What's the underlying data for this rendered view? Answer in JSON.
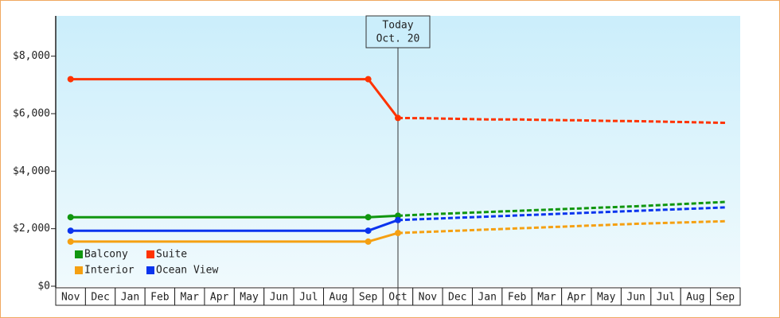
{
  "chart_data": {
    "type": "line",
    "categories": [
      "Nov",
      "Dec",
      "Jan",
      "Feb",
      "Mar",
      "Apr",
      "May",
      "Jun",
      "Jul",
      "Aug",
      "Sep",
      "Oct",
      "Nov",
      "Dec",
      "Jan",
      "Feb",
      "Mar",
      "Apr",
      "May",
      "Jun",
      "Jul",
      "Aug",
      "Sep"
    ],
    "series": [
      {
        "name": "Balcony",
        "color": "#10960f",
        "values": [
          2400,
          2400,
          2400,
          2400,
          2400,
          2400,
          2400,
          2400,
          2400,
          2400,
          2400,
          2450,
          2500,
          2540,
          2580,
          2620,
          2660,
          2700,
          2740,
          2780,
          2830,
          2880,
          2930
        ]
      },
      {
        "name": "Suite",
        "color": "#ff3300",
        "values": [
          7200,
          7200,
          7200,
          7200,
          7200,
          7200,
          7200,
          7200,
          7200,
          7200,
          7200,
          5850,
          5840,
          5820,
          5800,
          5800,
          5780,
          5770,
          5750,
          5740,
          5720,
          5700,
          5680
        ]
      },
      {
        "name": "Interior",
        "color": "#f5a012",
        "values": [
          1550,
          1550,
          1550,
          1550,
          1550,
          1550,
          1550,
          1550,
          1550,
          1550,
          1550,
          1850,
          1890,
          1930,
          1970,
          2010,
          2050,
          2090,
          2130,
          2170,
          2200,
          2230,
          2260
        ]
      },
      {
        "name": "Ocean View",
        "color": "#0a34ee",
        "values": [
          1930,
          1930,
          1930,
          1930,
          1930,
          1930,
          1930,
          1930,
          1930,
          1930,
          1930,
          2300,
          2340,
          2380,
          2420,
          2460,
          2500,
          2540,
          2580,
          2620,
          2660,
          2700,
          2740
        ]
      }
    ],
    "ylim": [
      0,
      9400
    ],
    "yticks": [
      {
        "value": 0,
        "label": "$0"
      },
      {
        "value": 2000,
        "label": "$2,000"
      },
      {
        "value": 4000,
        "label": "$4,000"
      },
      {
        "value": 6000,
        "label": "$6,000"
      },
      {
        "value": 8000,
        "label": "$8,000"
      }
    ],
    "annotation": {
      "text": [
        "Today",
        "Oct. 20"
      ],
      "category": 11
    },
    "legend": "lower-left"
  }
}
